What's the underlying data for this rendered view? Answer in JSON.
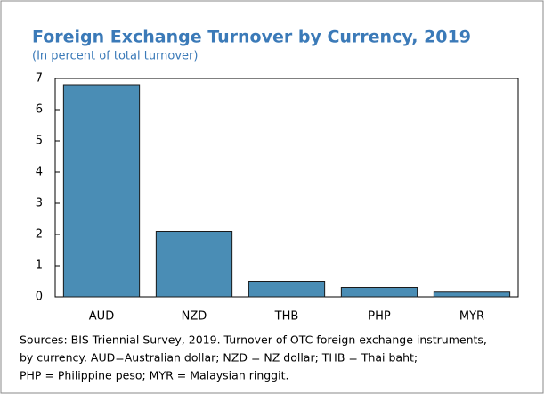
{
  "chart_data": {
    "type": "bar",
    "title": "Foreign Exchange Turnover by Currency, 2019",
    "subtitle": "(In percent of total turnover)",
    "categories": [
      "AUD",
      "NZD",
      "THB",
      "PHP",
      "MYR"
    ],
    "values": [
      6.8,
      2.1,
      0.5,
      0.3,
      0.15
    ],
    "color": "#4a8db5",
    "ylim": [
      0,
      7
    ],
    "yticks": [
      0,
      1,
      2,
      3,
      4,
      5,
      6,
      7
    ],
    "grid": false,
    "note": [
      "Sources: BIS Triennial Survey, 2019. Turnover of OTC foreign exchange instruments,",
      "by currency. AUD=Australian dollar; NZD = NZ dollar; THB = Thai baht;",
      "PHP = Philippine peso; MYR = Malaysian ringgit."
    ]
  }
}
